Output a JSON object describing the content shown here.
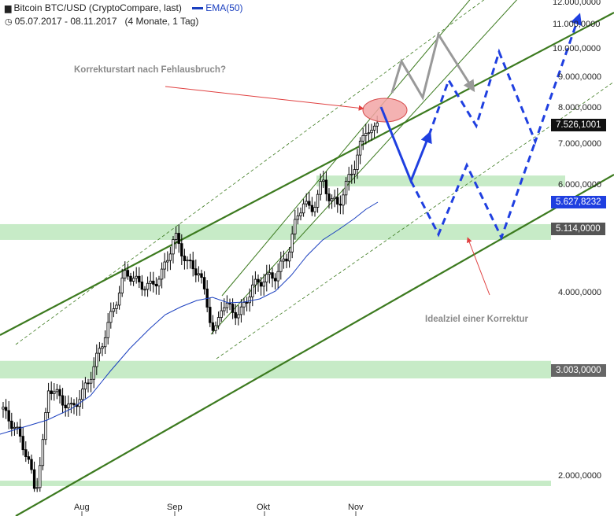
{
  "header": {
    "title": "Bitcoin BTC/USD (CryptoCompare, last)",
    "legend": "EMA(50)",
    "period": "05.07.2017 - 08.11.2017",
    "interval": "(4 Monate, 1 Tag)"
  },
  "annotations": {
    "top": "Korrekturstart nach Fehlausbruch?",
    "bottom": "Idealziel einer Korrektur"
  },
  "chart_data": {
    "type": "candlestick",
    "title": "Bitcoin BTC/USD (CryptoCompare, last)",
    "y_scale": "log",
    "ylim": [
      1850,
      12000
    ],
    "x_ticks": [
      "Aug",
      "Sep",
      "Okt",
      "Nov"
    ],
    "y_ticks": [
      "2.000,0000",
      "4.000,0000",
      "6.000,0000",
      "7.000,0000",
      "8.000,0000",
      "9.000,0000",
      "10.000,0000",
      "11.000,0000",
      "12.000,0000"
    ],
    "price_boxes": [
      {
        "label": "7.526,1001",
        "value": 7526.1,
        "style": "dark"
      },
      {
        "label": "5.627,8232",
        "value": 5627.8,
        "style": "blue"
      },
      {
        "label": "5.114,0000",
        "value": 5114,
        "style": "gray"
      },
      {
        "label": "3.003,0000",
        "value": 3003,
        "style": "gray"
      }
    ],
    "support_zones": [
      {
        "from": 1930,
        "to": 1970
      },
      {
        "from": 2900,
        "to": 3100
      },
      {
        "from": 4900,
        "to": 5200
      },
      {
        "from": 6000,
        "to": 6250
      }
    ],
    "colors": {
      "candle": "#000000",
      "ema": "#1a3fbf",
      "channel": "#3c7a1f",
      "zone": "#c7ebc7",
      "scenario_up": "#999999",
      "scenario_down": "#1f3fe0",
      "note_arrow": "#e04040"
    }
  }
}
